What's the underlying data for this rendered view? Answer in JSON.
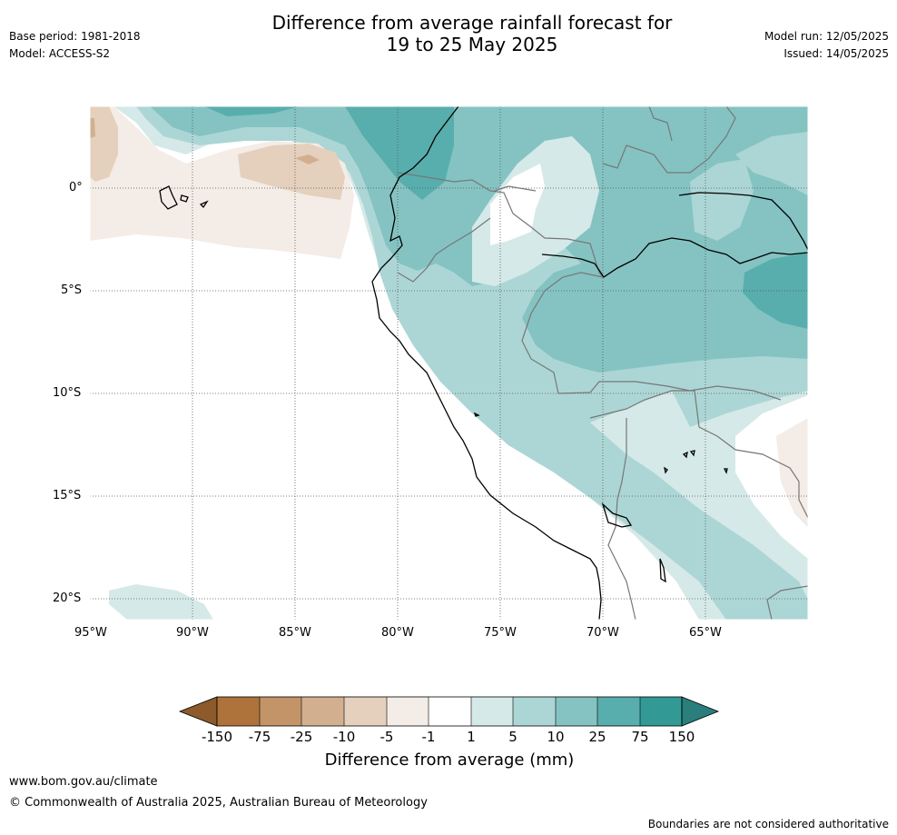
{
  "title_line1": "Difference from average rainfall forecast for",
  "title_line2": "19 to 25 May 2025",
  "left_meta": {
    "base_period": "Base period: 1981-2018",
    "model": "Model: ACCESS-S2"
  },
  "right_meta": {
    "model_run": "Model run: 12/05/2025",
    "issued": "Issued: 14/05/2025"
  },
  "map": {
    "lat_labels": [
      "0°",
      "5°S",
      "10°S",
      "15°S",
      "20°S"
    ],
    "lon_labels": [
      "95°W",
      "90°W",
      "85°W",
      "80°W",
      "75°W",
      "70°W",
      "65°W"
    ],
    "palette": {
      "brown_dark": "#8c5a2b",
      "b1": "#ad733a",
      "b2": "#c29468",
      "b3": "#d2b08f",
      "b4": "#e4d0bd",
      "b5": "#f4ece6",
      "white": "#ffffff",
      "t1": "#d5e9e8",
      "t2": "#acd6d5",
      "t3": "#84c3c2",
      "t4": "#58aead",
      "t5": "#329995",
      "teal_dark": "#2a7f7c"
    }
  },
  "colorbar": {
    "ticks": [
      "-150",
      "-75",
      "-25",
      "-10",
      "-5",
      "-1",
      "1",
      "5",
      "10",
      "25",
      "75",
      "150"
    ],
    "label": "Difference from average (mm)"
  },
  "footer": {
    "url": "www.bom.gov.au/climate",
    "copyright": "© Commonwealth of Australia 2025, Australian Bureau of Meteorology",
    "disclaimer": "Boundaries are not considered authoritative"
  }
}
